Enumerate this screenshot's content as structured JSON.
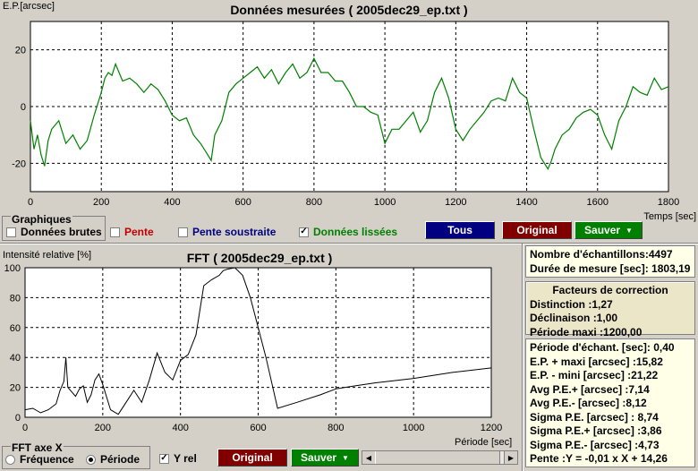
{
  "top_chart": {
    "title": "Données mesurées ( 2005dec29_ep.txt )",
    "ylabel": "E.P.[arcsec]",
    "xlabel": "Temps [sec]",
    "x_ticks": [
      "0",
      "200",
      "400",
      "600",
      "800",
      "1000",
      "1200",
      "1400",
      "1600",
      "1800"
    ],
    "y_ticks": [
      "20",
      "0",
      "-20"
    ],
    "line_color": "#008000"
  },
  "chart_data": [
    {
      "type": "line",
      "title": "Données mesurées ( 2005dec29_ep.txt )",
      "xlabel": "Temps [sec]",
      "ylabel": "E.P.[arcsec]",
      "xlim": [
        0,
        1800
      ],
      "ylim": [
        -30,
        30
      ],
      "grid": true,
      "series": [
        {
          "x": [
            0,
            10,
            20,
            30,
            40,
            50,
            60,
            80,
            100,
            120,
            140,
            160,
            180,
            200,
            210,
            220,
            230,
            240,
            260,
            280,
            300,
            320,
            340,
            360,
            380,
            400,
            420,
            440,
            460,
            480,
            500,
            510,
            520,
            540,
            560,
            580,
            600,
            620,
            640,
            660,
            680,
            700,
            720,
            740,
            760,
            780,
            800,
            820,
            840,
            860,
            880,
            900,
            920,
            940,
            960,
            980,
            1000,
            1020,
            1040,
            1060,
            1080,
            1100,
            1120,
            1140,
            1160,
            1180,
            1200,
            1220,
            1240,
            1260,
            1280,
            1300,
            1320,
            1340,
            1360,
            1380,
            1400,
            1420,
            1440,
            1460,
            1470,
            1480,
            1500,
            1520,
            1540,
            1560,
            1580,
            1600,
            1620,
            1640,
            1660,
            1680,
            1700,
            1720,
            1740,
            1760,
            1780,
            1800
          ],
          "y": [
            -5,
            -15,
            -10,
            -17,
            -21,
            -12,
            -8,
            -5,
            -13,
            -10,
            -15,
            -12,
            -3,
            5,
            10,
            12,
            11,
            15,
            9,
            10,
            8,
            5,
            8,
            6,
            2,
            -3,
            -5,
            -4,
            -10,
            -13,
            -17,
            -19,
            -10,
            -5,
            5,
            8,
            10,
            12,
            14,
            10,
            13,
            8,
            12,
            15,
            10,
            12,
            17,
            12,
            12,
            9,
            9,
            5,
            0,
            0,
            -2,
            -3,
            -13,
            -8,
            -8,
            -5,
            -2,
            -9,
            -5,
            5,
            10,
            3,
            -8,
            -12,
            -8,
            -5,
            -2,
            2,
            3,
            2,
            10,
            5,
            3,
            -8,
            -18,
            -22,
            -19,
            -15,
            -10,
            -8,
            -4,
            -2,
            -1,
            -3,
            -10,
            -15,
            -5,
            0,
            7,
            5,
            4,
            10,
            6,
            7
          ]
        }
      ]
    },
    {
      "type": "line",
      "title": "FFT ( 2005dec29_ep.txt )",
      "xlabel": "Période [sec]",
      "ylabel": "Intensité relative [%]",
      "xlim": [
        0,
        1200
      ],
      "ylim": [
        0,
        100
      ],
      "grid": true,
      "series": [
        {
          "x": [
            0,
            20,
            40,
            60,
            80,
            90,
            100,
            105,
            110,
            120,
            130,
            140,
            150,
            160,
            170,
            180,
            190,
            200,
            220,
            240,
            260,
            280,
            300,
            320,
            340,
            360,
            380,
            400,
            420,
            440,
            460,
            480,
            500,
            510,
            520,
            540,
            560,
            580,
            600,
            620,
            650,
            700,
            760,
            800,
            850,
            900,
            1000,
            1100,
            1200
          ],
          "y": [
            5,
            6,
            3,
            5,
            9,
            18,
            24,
            40,
            20,
            17,
            14,
            19,
            21,
            10,
            15,
            25,
            29,
            22,
            5,
            2,
            10,
            18,
            10,
            25,
            43,
            30,
            25,
            38,
            42,
            55,
            88,
            92,
            95,
            98,
            99,
            100,
            95,
            80,
            60,
            40,
            6,
            10,
            15,
            19,
            21,
            23,
            26,
            30,
            33
          ]
        }
      ]
    }
  ],
  "controls": {
    "group_label": "Graphiques",
    "raw_label": "Données brutes",
    "slope_label": "Pente",
    "slope_subtracted_label": "Pente soustraite",
    "smoothed_label": "Données lissées",
    "btn_all": "Tous",
    "btn_original": "Original",
    "btn_save": "Sauver",
    "slope_color": "#c00000",
    "slope_sub_color": "#000080",
    "smoothed_color": "#008000"
  },
  "fft_chart": {
    "title": "FFT ( 2005dec29_ep.txt )",
    "ylabel": "Intensité relative [%]",
    "xlabel": "Période [sec]",
    "x_ticks": [
      "0",
      "200",
      "400",
      "600",
      "800",
      "1000",
      "1200"
    ],
    "y_ticks": [
      "100",
      "80",
      "60",
      "40",
      "20",
      "0"
    ]
  },
  "fft_controls": {
    "axis_group_label": "FFT  axe X",
    "frequency_label": "Fréquence",
    "period_label": "Période",
    "yrel_label": "Y rel",
    "btn_original": "Original",
    "btn_save": "Sauver"
  },
  "stats_panel": {
    "samples": "Nombre d'échantillons:4497",
    "duration": "Durée de mesure [sec]: 1803,19"
  },
  "correction_panel": {
    "title": "Facteurs de correction",
    "distinction": "Distinction :1,27",
    "declination": "Déclinaison :1,00",
    "max_period": "Période maxi :1200,00"
  },
  "details_panel": {
    "lines": [
      "Période d'échant. [sec]: 0,40",
      "E.P. + maxi [arcsec] :15,82",
      "E.P. - mini [arcsec] :21,22",
      "Avg P.E.+ [arcsec] :7,14",
      "Avg P.E.- [arcsec] :8,12",
      "Sigma P.E. [arcsec] : 8,74",
      "Sigma P.E.+ [arcsec] :3,86",
      "Sigma P.E.- [arcsec] :4,73",
      "Pente :Y = -0,01 x X + 14,26"
    ]
  },
  "colors": {
    "navy_button": "#000080",
    "maroon_button": "#800000",
    "green_button": "#008000",
    "panel_cream": "#ffffe8",
    "panel_tan": "#ece6c8"
  }
}
